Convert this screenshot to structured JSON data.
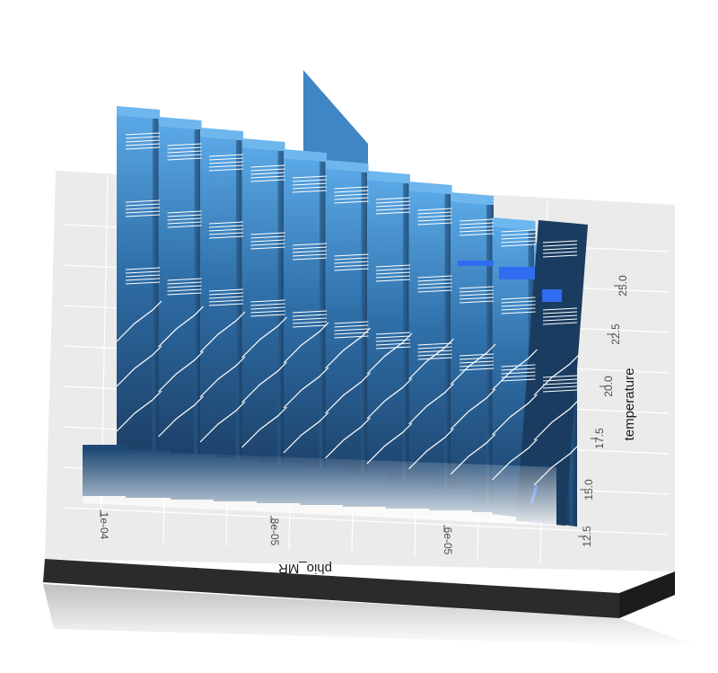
{
  "chart_data": {
    "type": "3d-bar",
    "title": "",
    "xlabel": "phio_MR",
    "ylabel": "temperature",
    "x_ticks": [
      "1e-04",
      "8e-05",
      "6e-05"
    ],
    "y_ticks": [
      "12.5",
      "15.0",
      "17.5",
      "20.0",
      "22.5",
      "25.0"
    ],
    "x_range": [
      5e-05,
      0.000105
    ],
    "y_range": [
      12.5,
      26
    ],
    "n_slices": 11,
    "grid": true,
    "colors": {
      "bar_light": "#5aa8e6",
      "bar_dark": "#183a5e",
      "highlight": "#2f6cf0",
      "panel": "#ebebeb",
      "base": "#2b2b2b"
    }
  }
}
